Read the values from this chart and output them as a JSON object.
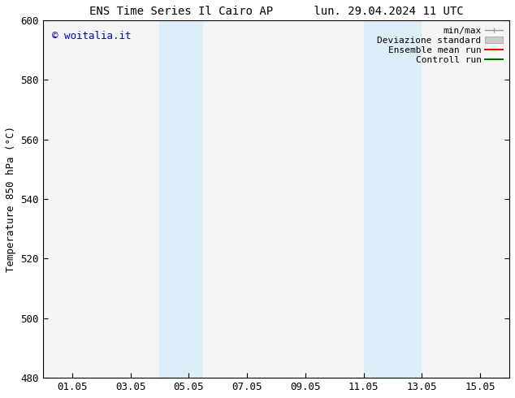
{
  "title_left": "ENS Time Series Il Cairo AP",
  "title_right": "lun. 29.04.2024 11 UTC",
  "ylabel": "Temperature 850 hPa (°C)",
  "xtick_labels": [
    "01.05",
    "03.05",
    "05.05",
    "07.05",
    "09.05",
    "11.05",
    "13.05",
    "15.05"
  ],
  "xtick_positions": [
    1,
    3,
    5,
    7,
    9,
    11,
    13,
    15
  ],
  "xlim": [
    0,
    16
  ],
  "ylim": [
    480,
    600
  ],
  "ytick_positions": [
    480,
    500,
    520,
    540,
    560,
    580,
    600
  ],
  "ytick_labels": [
    "480",
    "500",
    "520",
    "540",
    "560",
    "580",
    "600"
  ],
  "shaded_regions": [
    {
      "xmin": 4.0,
      "xmax": 5.5,
      "color": "#ddeef8"
    },
    {
      "xmin": 11.0,
      "xmax": 13.0,
      "color": "#ddeef8"
    }
  ],
  "watermark_text": "© woitalia.it",
  "watermark_color": "#0000cc",
  "bg_color": "#ffffff",
  "plot_bg_color": "#f5f5f5",
  "spine_color": "#000000",
  "title_fontsize": 10,
  "tick_fontsize": 9,
  "legend_fontsize": 8,
  "ylabel_fontsize": 9
}
